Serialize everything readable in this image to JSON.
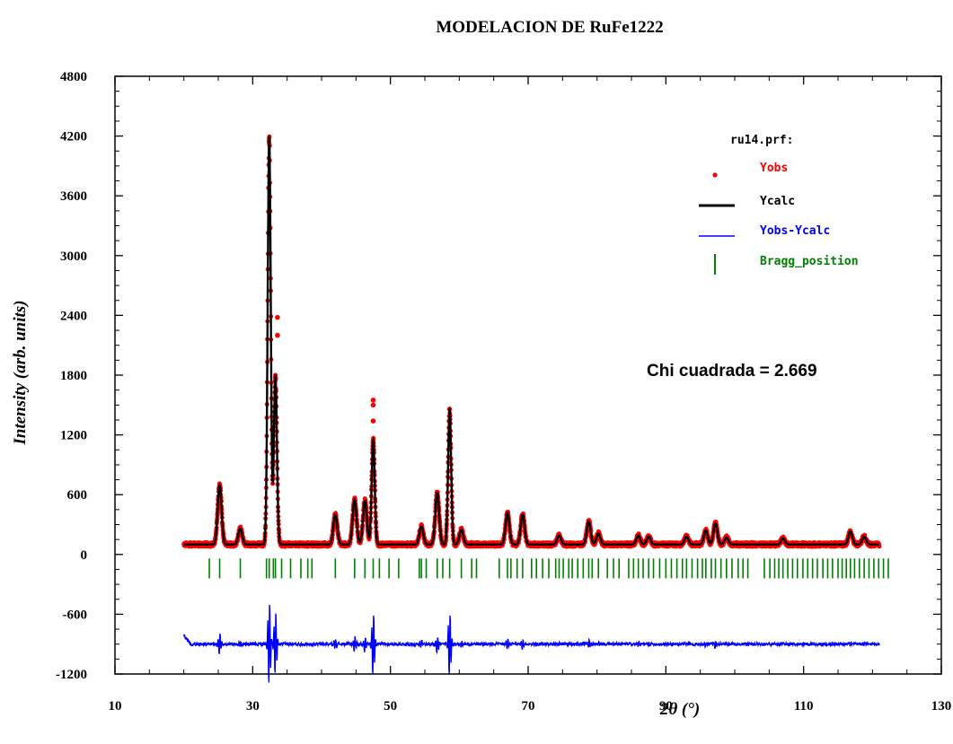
{
  "chart_data": {
    "type": "line",
    "title": "MODELACION DE RuFe1222",
    "xlabel": "2θ (°)",
    "ylabel": "Intensity (arb. units)",
    "xlim": [
      10,
      130
    ],
    "ylim": [
      -1200,
      4800
    ],
    "x_ticks": [
      10,
      30,
      50,
      70,
      90,
      110,
      130
    ],
    "y_ticks": [
      -1200,
      -600,
      0,
      600,
      1200,
      1800,
      2400,
      3000,
      3600,
      4200,
      4800
    ],
    "x_range": [
      20,
      121
    ],
    "background": 100,
    "difference_offset": -900,
    "legend": {
      "file": "ru14.prf:",
      "placement": "top-right",
      "entries": [
        {
          "name": "Yobs",
          "color": "#ff0000",
          "marker": "dot"
        },
        {
          "name": "Ycalc",
          "color": "#000000",
          "marker": "line"
        },
        {
          "name": "Yobs-Ycalc",
          "color": "#0000ff",
          "marker": "line"
        },
        {
          "name": "Bragg_position",
          "color": "#008000",
          "marker": "vbar"
        }
      ]
    },
    "annotation": "Chi cuadrada = 2.669",
    "peaks": [
      {
        "x": 25.2,
        "height": 600
      },
      {
        "x": 28.2,
        "height": 160
      },
      {
        "x": 32.4,
        "height": 4100
      },
      {
        "x": 33.3,
        "height": 1700
      },
      {
        "x": 42.0,
        "height": 300
      },
      {
        "x": 44.8,
        "height": 450
      },
      {
        "x": 46.3,
        "height": 440
      },
      {
        "x": 47.5,
        "height": 1050
      },
      {
        "x": 54.5,
        "height": 180
      },
      {
        "x": 56.8,
        "height": 520
      },
      {
        "x": 58.6,
        "height": 1350
      },
      {
        "x": 60.3,
        "height": 150
      },
      {
        "x": 67.0,
        "height": 320
      },
      {
        "x": 69.2,
        "height": 300
      },
      {
        "x": 74.5,
        "height": 90
      },
      {
        "x": 78.8,
        "height": 230
      },
      {
        "x": 80.2,
        "height": 110
      },
      {
        "x": 86.0,
        "height": 90
      },
      {
        "x": 87.5,
        "height": 80
      },
      {
        "x": 93.0,
        "height": 80
      },
      {
        "x": 95.8,
        "height": 140
      },
      {
        "x": 97.2,
        "height": 210
      },
      {
        "x": 98.8,
        "height": 70
      },
      {
        "x": 107.0,
        "height": 60
      },
      {
        "x": 116.8,
        "height": 130
      },
      {
        "x": 118.8,
        "height": 80
      }
    ],
    "bragg_positions": [
      23.7,
      25.2,
      28.2,
      32.0,
      32.4,
      33.0,
      33.3,
      34.2,
      35.5,
      37.0,
      38.0,
      38.6,
      42.0,
      44.8,
      46.3,
      47.5,
      48.4,
      49.8,
      51.2,
      54.2,
      54.5,
      55.2,
      56.8,
      57.6,
      58.6,
      60.3,
      61.8,
      62.5,
      65.8,
      67.0,
      67.5,
      68.4,
      69.2,
      70.5,
      71.2,
      72.1,
      73.0,
      74.0,
      74.5,
      75.1,
      75.9,
      76.4,
      77.2,
      78.0,
      78.8,
      79.3,
      80.2,
      81.5,
      82.4,
      83.2,
      84.6,
      85.3,
      86.0,
      86.7,
      87.5,
      88.2,
      89.1,
      90.0,
      90.8,
      91.6,
      92.4,
      93.0,
      93.8,
      94.6,
      95.3,
      95.8,
      96.6,
      97.2,
      98.0,
      98.8,
      99.6,
      100.5,
      101.2,
      101.9,
      104.3,
      105.1,
      105.8,
      106.4,
      107.0,
      107.7,
      108.4,
      109.1,
      109.9,
      110.6,
      111.3,
      112.0,
      112.8,
      113.5,
      114.2,
      115.0,
      115.6,
      116.2,
      116.8,
      117.4,
      118.1,
      118.8,
      119.5,
      120.2,
      120.9,
      121.6,
      122.3
    ],
    "outlier_points": [
      {
        "x": 33.6,
        "y": 2380
      },
      {
        "x": 33.6,
        "y": 2200
      },
      {
        "x": 47.5,
        "y": 1550
      },
      {
        "x": 47.5,
        "y": 1500
      },
      {
        "x": 47.5,
        "y": 1340
      }
    ]
  }
}
